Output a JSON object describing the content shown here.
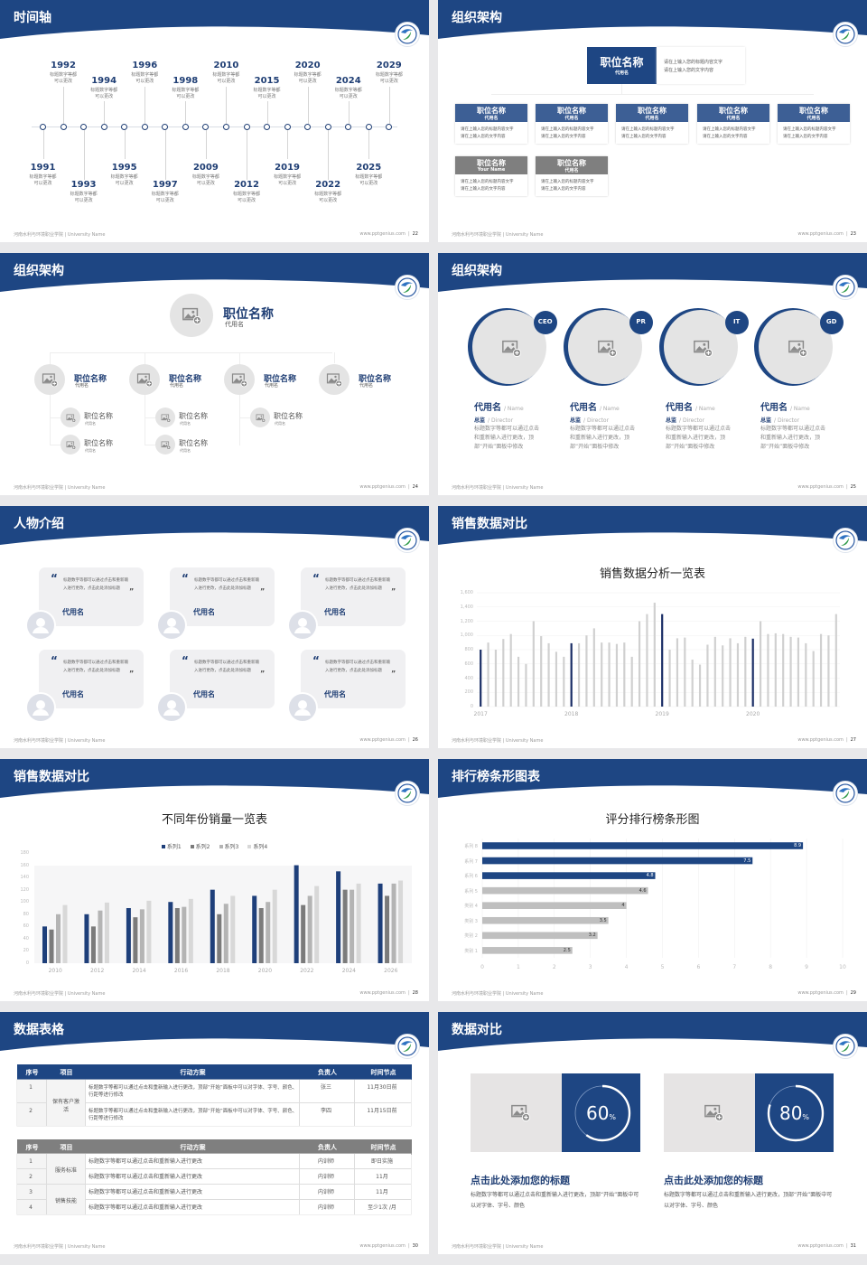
{
  "footer": {
    "school": "河南水利与环境职业学院 | University Name",
    "site": "www.pptgenius.com"
  },
  "colors": {
    "primary": "#1e4683",
    "navy": "#1a2e66",
    "gray_bar": "#d0d0d0",
    "mid_gray": "#7f7f7f"
  },
  "slides": [
    {
      "title": "时间轴",
      "page": "22",
      "timeline": [
        {
          "year": "1991",
          "l1": "标题数字等都",
          "l2": "可以更改"
        },
        {
          "year": "1992",
          "l1": "标题数字等都",
          "l2": "可以更改"
        },
        {
          "year": "1993",
          "l1": "标题数字等都",
          "l2": "可以更改"
        },
        {
          "year": "1994",
          "l1": "标题数字等都",
          "l2": "可以更改"
        },
        {
          "year": "1995",
          "l1": "标题数字等都",
          "l2": "可以更改"
        },
        {
          "year": "1996",
          "l1": "标题数字等都",
          "l2": "可以更改"
        },
        {
          "year": "1997",
          "l1": "标题数字等都",
          "l2": "可以更改"
        },
        {
          "year": "1998",
          "l1": "标题数字等都",
          "l2": "可以更改"
        },
        {
          "year": "2009",
          "l1": "标题数字等都",
          "l2": "可以更改"
        },
        {
          "year": "2010",
          "l1": "标题数字等都",
          "l2": "可以更改"
        },
        {
          "year": "2012",
          "l1": "标题数字等都",
          "l2": "可以更改"
        },
        {
          "year": "2015",
          "l1": "标题数字等都",
          "l2": "可以更改"
        },
        {
          "year": "2019",
          "l1": "标题数字等都",
          "l2": "可以更改"
        },
        {
          "year": "2020",
          "l1": "标题数字等都",
          "l2": "可以更改"
        },
        {
          "year": "2022",
          "l1": "标题数字等都",
          "l2": "可以更改"
        },
        {
          "year": "2024",
          "l1": "标题数字等都",
          "l2": "可以更改"
        },
        {
          "year": "2025",
          "l1": "标题数字等都",
          "l2": "可以更改"
        },
        {
          "year": "2029",
          "l1": "标题数字等都",
          "l2": "可以更改"
        }
      ]
    },
    {
      "title": "组织架构",
      "page": "23",
      "top": {
        "title": "职位名称",
        "sub": "代用名",
        "l1": "请在上输入您的标题内容文字",
        "l2": "请在上输入您的文字内容"
      },
      "row1": [
        {
          "title": "职位名称",
          "sub": "代用名",
          "l1": "请在上输入您的标题内容文字",
          "l2": "请在上输入您的文字内容"
        },
        {
          "title": "职位名称",
          "sub": "代用名",
          "l1": "请在上输入您的标题内容文字",
          "l2": "请在上输入您的文字内容"
        },
        {
          "title": "职位名称",
          "sub": "代用名",
          "l1": "请在上输入您的标题内容文字",
          "l2": "请在上输入您的文字内容"
        },
        {
          "title": "职位名称",
          "sub": "代用名",
          "l1": "请在上输入您的标题内容文字",
          "l2": "请在上输入您的文字内容"
        },
        {
          "title": "职位名称",
          "sub": "代用名",
          "l1": "请在上输入您的标题内容文字",
          "l2": "请在上输入您的文字内容"
        }
      ],
      "row2": [
        {
          "title": "职位名称",
          "sub": "Your Name",
          "l1": "请在上输入您的标题内容文字",
          "l2": "请在上输入您的文字内容"
        },
        {
          "title": "职位名称",
          "sub": "代用名",
          "l1": "请在上输入您的标题内容文字",
          "l2": "请在上输入您的文字内容"
        }
      ]
    },
    {
      "title": "组织架构",
      "page": "24",
      "top": {
        "title": "职位名称",
        "sub": "代用名"
      },
      "branches": [
        {
          "title": "职位名称",
          "sub": "代用名",
          "children": [
            {
              "title": "职位名称",
              "sub": "代用名"
            },
            {
              "title": "职位名称",
              "sub": "代用名"
            }
          ]
        },
        {
          "title": "职位名称",
          "sub": "代用名",
          "children": [
            {
              "title": "职位名称",
              "sub": "代用名"
            },
            {
              "title": "职位名称",
              "sub": "代用名"
            }
          ]
        },
        {
          "title": "职位名称",
          "sub": "代用名",
          "children": [
            {
              "title": "职位名称",
              "sub": "代用名"
            }
          ]
        },
        {
          "title": "职位名称",
          "sub": "代用名",
          "children": []
        }
      ]
    },
    {
      "title": "组织架构",
      "page": "25",
      "members": [
        {
          "badge": "CEO",
          "name": "代用名",
          "name_en": "/ Name",
          "role": "总监",
          "role_en": "/  Director",
          "desc": "标题数字等都可以通过点击和重新输入进行更改，顶部“开始”面板中修改"
        },
        {
          "badge": "PR",
          "name": "代用名",
          "name_en": "/ Name",
          "role": "总监",
          "role_en": "/  Director",
          "desc": "标题数字等都可以通过点击和重新输入进行更改，顶部“开始”面板中修改"
        },
        {
          "badge": "IT",
          "name": "代用名",
          "name_en": "/ Name",
          "role": "总监",
          "role_en": "/  Director",
          "desc": "标题数字等都可以通过点击和重新输入进行更改，顶部“开始”面板中修改"
        },
        {
          "badge": "GD",
          "name": "代用名",
          "name_en": "/ Name",
          "role": "总监",
          "role_en": "/  Director",
          "desc": "标题数字等都可以通过点击和重新输入进行更改，顶部“开始”面板中修改"
        }
      ]
    },
    {
      "title": "人物介绍",
      "page": "26",
      "cards": [
        {
          "quote": "标题数字等都可以通过点击和重新输入进行更改，点击此处添加标题",
          "name": "代用名"
        },
        {
          "quote": "标题数字等都可以通过点击和重新输入进行更改，点击此处添加标题",
          "name": "代用名"
        },
        {
          "quote": "标题数字等都可以通过点击和重新输入进行更改，点击此处添加标题",
          "name": "代用名"
        },
        {
          "quote": "标题数字等都可以通过点击和重新输入进行更改，点击此处添加标题",
          "name": "代用名"
        },
        {
          "quote": "标题数字等都可以通过点击和重新输入进行更改，点击此处添加标题",
          "name": "代用名"
        },
        {
          "quote": "标题数字等都可以通过点击和重新输入进行更改，点击此处添加标题",
          "name": "代用名"
        }
      ]
    },
    {
      "title": "销售数据对比",
      "page": "27"
    },
    {
      "title": "销售数据对比",
      "page": "28"
    },
    {
      "title": "排行榜条形图表",
      "page": "29"
    },
    {
      "title": "数据表格",
      "page": "30",
      "table1": {
        "headers": [
          "序号",
          "项目",
          "行动方案",
          "负责人",
          "时间节点"
        ],
        "group": "保有客户激活",
        "rows": [
          [
            "1",
            "标题数字等都可以通过点击和重新输入进行更改，顶部“开始”面板中可以对字体、字号、颜色、行距等进行修改",
            "张三",
            "11月30日前"
          ],
          [
            "2",
            "标题数字等都可以通过点击和重新输入进行更改，顶部“开始”面板中可以对字体、字号、颜色、行距等进行修改",
            "李四",
            "11月15日前"
          ]
        ]
      },
      "table2": {
        "headers": [
          "序号",
          "项目",
          "行动方案",
          "负责人",
          "时间节点"
        ],
        "groups": [
          "服务标准",
          "销售技能"
        ],
        "rows": [
          [
            "1",
            "标题数字等都可以通过点击和重新输入进行更改",
            "内训师",
            "即日实施"
          ],
          [
            "2",
            "标题数字等都可以通过点击和重新输入进行更改",
            "内训师",
            "11月"
          ],
          [
            "3",
            "标题数字等都可以通过点击和重新输入进行更改",
            "内训师",
            "11月"
          ],
          [
            "4",
            "标题数字等都可以通过点击和重新输入进行更改",
            "内训师",
            "至少1次 /月"
          ]
        ]
      }
    },
    {
      "title": "数据对比",
      "page": "31",
      "panels": [
        {
          "percent": 60,
          "value": "60",
          "unit": "%",
          "heading": "点击此处添加您的标题",
          "desc": "标题数字等都可以通过点击和重新输入进行更改，顶部“开始”面板中可以对字体、字号、颜色"
        },
        {
          "percent": 80,
          "value": "80",
          "unit": "%",
          "heading": "点击此处添加您的标题",
          "desc": "标题数字等都可以通过点击和重新输入进行更改，顶部“开始”面板中可以对字体、字号、颜色"
        }
      ]
    }
  ],
  "chart_data": [
    {
      "type": "bar",
      "title": "销售数据分析一览表",
      "x_tick_labels": [
        "2017",
        "2018",
        "2019",
        "2020"
      ],
      "ylim": [
        0,
        1600
      ],
      "y_ticks": [
        "0",
        "200",
        "400",
        "600",
        "800",
        "1,000",
        "1,200",
        "1,400",
        "1,600"
      ],
      "highlight_every": 12,
      "values": [
        800,
        900,
        800,
        950,
        1020,
        700,
        600,
        1200,
        990,
        890,
        770,
        700,
        890,
        890,
        1000,
        1100,
        900,
        900,
        880,
        900,
        700,
        1200,
        1300,
        1460,
        1300,
        800,
        960,
        970,
        660,
        590,
        870,
        980,
        860,
        960,
        890,
        980,
        955,
        1200,
        1020,
        1030,
        1020,
        980,
        970,
        890,
        780,
        1020,
        1000,
        1300
      ],
      "grid": true
    },
    {
      "type": "bar",
      "title": "不同年份销量一览表",
      "categories": [
        "2010",
        "2012",
        "2014",
        "2016",
        "2018",
        "2020",
        "2022",
        "2024",
        "2026"
      ],
      "ylim": [
        0,
        180
      ],
      "y_ticks": [
        "0",
        "20",
        "40",
        "60",
        "80",
        "100",
        "120",
        "140",
        "160",
        "180"
      ],
      "legend": "top",
      "series": [
        {
          "name": "系列1",
          "color": "#1e3f7a",
          "values": [
            60,
            80,
            90,
            100,
            120,
            110,
            160,
            150,
            130
          ]
        },
        {
          "name": "系列2",
          "color": "#7b7b7b",
          "values": [
            55,
            60,
            75,
            90,
            80,
            90,
            95,
            120,
            110
          ]
        },
        {
          "name": "系列3",
          "color": "#b4b4b4",
          "values": [
            80,
            86,
            88,
            92,
            97,
            100,
            110,
            120,
            130
          ]
        },
        {
          "name": "系列4",
          "color": "#d8d8d8",
          "values": [
            95,
            99,
            102,
            105,
            110,
            120,
            126,
            130,
            135
          ]
        }
      ]
    },
    {
      "type": "bar",
      "orientation": "horizontal",
      "title": "评分排行榜条形图",
      "categories": [
        "系列 8",
        "系列 7",
        "系列 6",
        "系列 5",
        "类别 4",
        "类别 3",
        "类别 2",
        "类别 1"
      ],
      "values": [
        8.9,
        7.5,
        4.8,
        4.6,
        4,
        3.5,
        3.2,
        2.5
      ],
      "value_labels": [
        "8.9",
        "7.5",
        "4.8",
        "4.6",
        "4",
        "3.5",
        "3.2",
        "2.5"
      ],
      "highlight_top": 3,
      "xlim": [
        0,
        10
      ],
      "x_ticks": [
        "0",
        "1",
        "2",
        "3",
        "4",
        "5",
        "6",
        "7",
        "8",
        "9",
        "10"
      ],
      "grid": true
    }
  ]
}
